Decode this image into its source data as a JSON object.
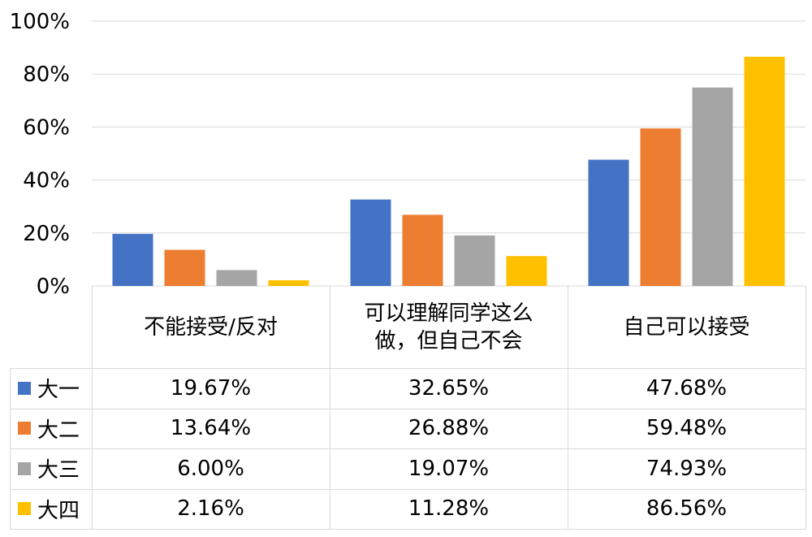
{
  "chart_data": {
    "type": "bar",
    "categories": [
      "不能接受/反对",
      "可以理解同学这么做，但自己不会",
      "自己可以接受"
    ],
    "category_lines": [
      [
        "不能接受/反对"
      ],
      [
        "可以理解同学这么",
        "做，但自己不会"
      ],
      [
        "自己可以接受"
      ]
    ],
    "series": [
      {
        "name": "大一",
        "color": "#4472C4",
        "values": [
          19.67,
          32.65,
          47.68
        ],
        "labels": [
          "19.67%",
          "32.65%",
          "47.68%"
        ]
      },
      {
        "name": "大二",
        "color": "#ED7D31",
        "values": [
          13.64,
          26.88,
          59.48
        ],
        "labels": [
          "13.64%",
          "26.88%",
          "59.48%"
        ]
      },
      {
        "name": "大三",
        "color": "#A5A5A5",
        "values": [
          6.0,
          19.07,
          74.93
        ],
        "labels": [
          "6.00%",
          "19.07%",
          "74.93%"
        ]
      },
      {
        "name": "大四",
        "color": "#FFC000",
        "values": [
          2.16,
          11.28,
          86.56
        ],
        "labels": [
          "2.16%",
          "11.28%",
          "86.56%"
        ]
      }
    ],
    "ylim": [
      0,
      100
    ],
    "yticks": [
      "0%",
      "20%",
      "40%",
      "60%",
      "80%",
      "100%"
    ],
    "grid": true,
    "legend": "data-table"
  }
}
